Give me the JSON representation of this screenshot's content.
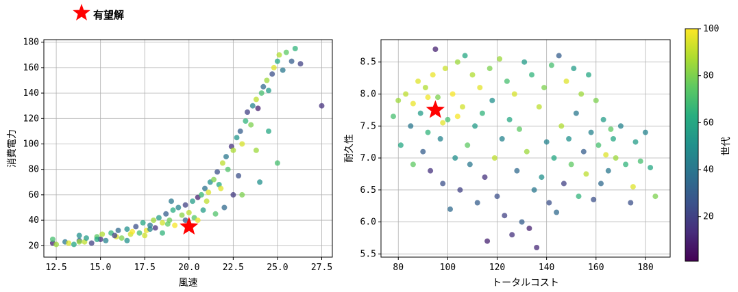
{
  "legend": {
    "label": "有望解",
    "icon": "star-icon",
    "color": "#ff0000"
  },
  "colorbar": {
    "label": "世代",
    "ticks": [
      20,
      40,
      60,
      80,
      100
    ],
    "range": [
      1,
      100
    ],
    "colormap": "viridis"
  },
  "chart_data": [
    {
      "type": "scatter",
      "xlabel": "風速",
      "ylabel": "消費電力",
      "xlim": [
        11.8,
        28.1
      ],
      "ylim": [
        11,
        182
      ],
      "xticks": [
        "12.5",
        "15.0",
        "17.5",
        "20.0",
        "22.5",
        "25.0",
        "27.5"
      ],
      "yticks": [
        "20",
        "40",
        "60",
        "80",
        "100",
        "120",
        "140",
        "160",
        "180"
      ],
      "grid": true,
      "color_by": "世代",
      "highlight": {
        "x": 20.0,
        "y": 35,
        "label": "有望解"
      },
      "points": [
        [
          12.3,
          22,
          10
        ],
        [
          12.3,
          25,
          70
        ],
        [
          12.5,
          21,
          85
        ],
        [
          13,
          23,
          40
        ],
        [
          13.2,
          22,
          95
        ],
        [
          13.5,
          21,
          60
        ],
        [
          13.8,
          24,
          30
        ],
        [
          13.8,
          28,
          50
        ],
        [
          14.1,
          23,
          90
        ],
        [
          14.2,
          26,
          55
        ],
        [
          14.5,
          22,
          20
        ],
        [
          14.8,
          27,
          75
        ],
        [
          15,
          25,
          15
        ],
        [
          15.1,
          29,
          88
        ],
        [
          15.3,
          24,
          45
        ],
        [
          15.6,
          30,
          65
        ],
        [
          15.9,
          27,
          95
        ],
        [
          16,
          32,
          35
        ],
        [
          16.2,
          26,
          80
        ],
        [
          16.5,
          33,
          50
        ],
        [
          16.7,
          29,
          92
        ],
        [
          17,
          35,
          25
        ],
        [
          17.2,
          30,
          70
        ],
        [
          17.4,
          38,
          60
        ],
        [
          17.6,
          32,
          97
        ],
        [
          17.8,
          36,
          40
        ],
        [
          18,
          40,
          85
        ],
        [
          18.1,
          34,
          15
        ],
        [
          18.3,
          42,
          55
        ],
        [
          18.5,
          38,
          93
        ],
        [
          18.7,
          45,
          30
        ],
        [
          18.9,
          40,
          78
        ],
        [
          19.1,
          48,
          62
        ],
        [
          19.2,
          36,
          99
        ],
        [
          19.4,
          50,
          45
        ],
        [
          19.6,
          44,
          82
        ],
        [
          19.8,
          52,
          20
        ],
        [
          20,
          46,
          90
        ],
        [
          20.2,
          55,
          55
        ],
        [
          20.3,
          42,
          73
        ],
        [
          20.5,
          58,
          10
        ],
        [
          20.7,
          60,
          68
        ],
        [
          20.9,
          65,
          38
        ],
        [
          21.1,
          62,
          95
        ],
        [
          21.2,
          70,
          50
        ],
        [
          21.4,
          72,
          80
        ],
        [
          21.6,
          78,
          25
        ],
        [
          21.7,
          68,
          60
        ],
        [
          21.9,
          85,
          90
        ],
        [
          22.1,
          90,
          40
        ],
        [
          22.2,
          80,
          72
        ],
        [
          22.4,
          98,
          15
        ],
        [
          22.5,
          95,
          87
        ],
        [
          22.7,
          105,
          52
        ],
        [
          22.9,
          110,
          30
        ],
        [
          23,
          100,
          94
        ],
        [
          23.2,
          118,
          65
        ],
        [
          23.3,
          125,
          20
        ],
        [
          23.5,
          115,
          80
        ],
        [
          23.6,
          130,
          45
        ],
        [
          23.8,
          135,
          90
        ],
        [
          23.9,
          128,
          10
        ],
        [
          24.1,
          140,
          70
        ],
        [
          24.2,
          145,
          35
        ],
        [
          24.4,
          150,
          85
        ],
        [
          24.5,
          142,
          55
        ],
        [
          24.7,
          155,
          25
        ],
        [
          24.8,
          160,
          95
        ],
        [
          25,
          165,
          60
        ],
        [
          25.1,
          170,
          88
        ],
        [
          25.3,
          158,
          40
        ],
        [
          25.5,
          172,
          75
        ],
        [
          25.8,
          165,
          30
        ],
        [
          26,
          175,
          65
        ],
        [
          26.3,
          163,
          20
        ],
        [
          27.5,
          130,
          15
        ],
        [
          24,
          70,
          50
        ],
        [
          23,
          60,
          80
        ],
        [
          22,
          50,
          35
        ],
        [
          21,
          55,
          90
        ],
        [
          25,
          85,
          70
        ],
        [
          24.5,
          110,
          60
        ],
        [
          23.8,
          95,
          85
        ],
        [
          22.8,
          75,
          25
        ],
        [
          21.8,
          65,
          95
        ],
        [
          20.8,
          48,
          55
        ],
        [
          19.8,
          40,
          30
        ],
        [
          18.8,
          37,
          75
        ],
        [
          17.8,
          33,
          45
        ],
        [
          16.8,
          31,
          99
        ],
        [
          15.8,
          28,
          20
        ],
        [
          14.8,
          25,
          60
        ],
        [
          13.8,
          23,
          85
        ],
        [
          19,
          55,
          40
        ],
        [
          18.5,
          30,
          65
        ],
        [
          17.5,
          28,
          93
        ],
        [
          16.5,
          24,
          50
        ],
        [
          20.5,
          40,
          97
        ],
        [
          21.5,
          45,
          72
        ],
        [
          22.5,
          60,
          18
        ]
      ]
    },
    {
      "type": "scatter",
      "xlabel": "トータルコスト",
      "ylabel": "耐久性",
      "xlim": [
        73,
        190
      ],
      "ylim": [
        5.45,
        8.85
      ],
      "xticks": [
        "80",
        "100",
        "120",
        "140",
        "160",
        "180"
      ],
      "yticks": [
        "5.5",
        "6.0",
        "6.5",
        "7.0",
        "7.5",
        "8.0",
        "8.5"
      ],
      "grid": true,
      "color_by": "世代",
      "highlight": {
        "x": 95,
        "y": 7.75,
        "label": "有望解"
      },
      "points": [
        [
          78,
          7.65,
          70
        ],
        [
          80,
          7.9,
          85
        ],
        [
          81,
          7.2,
          60
        ],
        [
          83,
          8.0,
          90
        ],
        [
          85,
          7.5,
          40
        ],
        [
          86,
          6.9,
          75
        ],
        [
          88,
          8.2,
          95
        ],
        [
          89,
          7.7,
          55
        ],
        [
          90,
          7.1,
          30
        ],
        [
          91,
          8.1,
          88
        ],
        [
          92,
          7.4,
          65
        ],
        [
          93,
          6.8,
          15
        ],
        [
          94,
          8.3,
          97
        ],
        [
          95,
          8.7,
          10
        ],
        [
          96,
          7.95,
          80
        ],
        [
          97,
          7.3,
          45
        ],
        [
          98,
          6.6,
          25
        ],
        [
          99,
          8.4,
          92
        ],
        [
          100,
          7.6,
          70
        ],
        [
          101,
          6.2,
          35
        ],
        [
          102,
          8.0,
          99
        ],
        [
          103,
          7.0,
          50
        ],
        [
          104,
          8.5,
          85
        ],
        [
          105,
          6.5,
          20
        ],
        [
          106,
          7.8,
          93
        ],
        [
          107,
          8.6,
          60
        ],
        [
          108,
          7.2,
          75
        ],
        [
          109,
          6.9,
          40
        ],
        [
          110,
          8.3,
          88
        ],
        [
          111,
          7.5,
          55
        ],
        [
          112,
          6.3,
          30
        ],
        [
          113,
          8.1,
          96
        ],
        [
          114,
          7.7,
          65
        ],
        [
          115,
          6.7,
          15
        ],
        [
          116,
          5.7,
          10
        ],
        [
          117,
          8.4,
          80
        ],
        [
          118,
          7.9,
          50
        ],
        [
          119,
          7.0,
          90
        ],
        [
          120,
          6.4,
          25
        ],
        [
          121,
          8.55,
          85
        ],
        [
          122,
          7.3,
          45
        ],
        [
          123,
          6.1,
          20
        ],
        [
          124,
          8.2,
          70
        ],
        [
          125,
          7.6,
          60
        ],
        [
          126,
          5.8,
          15
        ],
        [
          127,
          8.0,
          94
        ],
        [
          128,
          6.8,
          35
        ],
        [
          129,
          7.45,
          75
        ],
        [
          130,
          6.0,
          30
        ],
        [
          131,
          8.5,
          55
        ],
        [
          132,
          7.1,
          85
        ],
        [
          133,
          5.9,
          10
        ],
        [
          134,
          8.3,
          65
        ],
        [
          135,
          6.5,
          40
        ],
        [
          136,
          5.6,
          12
        ],
        [
          137,
          7.8,
          90
        ],
        [
          138,
          6.7,
          50
        ],
        [
          139,
          8.1,
          80
        ],
        [
          140,
          7.25,
          45
        ],
        [
          141,
          6.3,
          25
        ],
        [
          142,
          8.45,
          70
        ],
        [
          143,
          7.0,
          60
        ],
        [
          144,
          6.15,
          35
        ],
        [
          145,
          8.6,
          30
        ],
        [
          146,
          7.5,
          88
        ],
        [
          147,
          6.6,
          20
        ],
        [
          148,
          8.2,
          95
        ],
        [
          149,
          7.3,
          50
        ],
        [
          150,
          6.9,
          75
        ],
        [
          151,
          8.4,
          55
        ],
        [
          152,
          7.7,
          40
        ],
        [
          153,
          6.4,
          65
        ],
        [
          154,
          8.0,
          85
        ],
        [
          155,
          7.1,
          30
        ],
        [
          156,
          6.75,
          90
        ],
        [
          157,
          8.3,
          60
        ],
        [
          158,
          7.4,
          45
        ],
        [
          159,
          6.35,
          25
        ],
        [
          160,
          7.9,
          80
        ],
        [
          161,
          7.2,
          70
        ],
        [
          162,
          6.6,
          35
        ],
        [
          163,
          7.6,
          55
        ],
        [
          164,
          7.05,
          95
        ],
        [
          165,
          6.8,
          40
        ],
        [
          166,
          7.45,
          75
        ],
        [
          167,
          7.3,
          60
        ],
        [
          168,
          7.0,
          85
        ],
        [
          170,
          7.5,
          45
        ],
        [
          172,
          6.9,
          65
        ],
        [
          174,
          6.3,
          25
        ],
        [
          175,
          6.55,
          95
        ],
        [
          176,
          7.25,
          55
        ],
        [
          178,
          6.95,
          70
        ],
        [
          180,
          7.4,
          45
        ],
        [
          182,
          6.85,
          60
        ],
        [
          184,
          6.4,
          80
        ],
        [
          86,
          7.85,
          97
        ],
        [
          92,
          7.95,
          98
        ],
        [
          98,
          7.55,
          96
        ],
        [
          104,
          7.65,
          99
        ]
      ]
    }
  ]
}
